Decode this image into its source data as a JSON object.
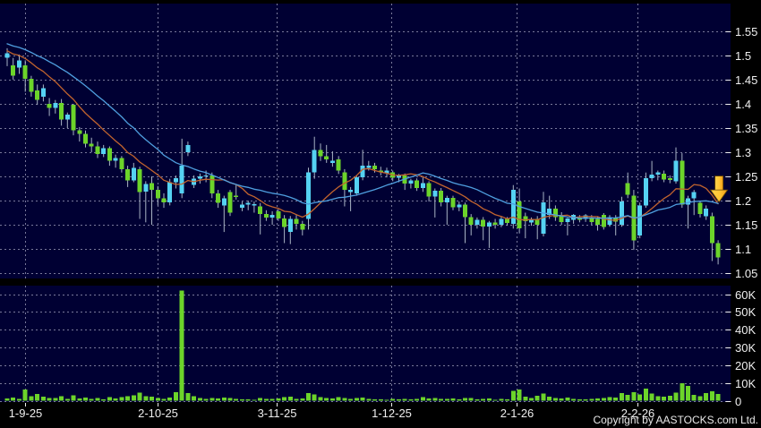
{
  "footer": {
    "copyright": "Copyright by AASTOCKS.com Ltd."
  },
  "chart_data": {
    "type": "candlestick+volume",
    "title": "",
    "legend_position": "none",
    "grid": true,
    "price_axis": {
      "side": "right",
      "min": 1.05,
      "max": 1.55,
      "step": 0.05,
      "ticks": [
        {
          "label": "1.55",
          "value": 1.55
        },
        {
          "label": "1.5",
          "value": 1.5
        },
        {
          "label": "1.45",
          "value": 1.45
        },
        {
          "label": "1.4",
          "value": 1.4
        },
        {
          "label": "1.35",
          "value": 1.35
        },
        {
          "label": "1.3",
          "value": 1.3
        },
        {
          "label": "1.25",
          "value": 1.25
        },
        {
          "label": "1.2",
          "value": 1.2
        },
        {
          "label": "1.15",
          "value": 1.15
        },
        {
          "label": "1.1",
          "value": 1.1
        },
        {
          "label": "1.05",
          "value": 1.05
        }
      ]
    },
    "volume_axis": {
      "side": "right",
      "min": 0,
      "max": 63000,
      "ticks": [
        {
          "label": "60K",
          "value": 60000
        },
        {
          "label": "50K",
          "value": 50000
        },
        {
          "label": "40K",
          "value": 40000
        },
        {
          "label": "30K",
          "value": 30000
        },
        {
          "label": "20K",
          "value": 20000
        },
        {
          "label": "10K",
          "value": 10000
        },
        {
          "label": "0",
          "value": 0
        }
      ]
    },
    "x_ticks": [
      {
        "label": "1-9-25",
        "index": 3
      },
      {
        "label": "2-10-25",
        "index": 25
      },
      {
        "label": "3-11-25",
        "index": 44.7
      },
      {
        "label": "1-12-25",
        "index": 63.7
      },
      {
        "label": "2-1-26",
        "index": 84.5
      },
      {
        "label": "2-2-26",
        "index": 104.6
      }
    ],
    "colors": {
      "background": "#000000",
      "panel": "#000033",
      "grid": "#8f8fae",
      "up": "#55d2f2",
      "down": "#6cd42a",
      "wick": "#a9b4c4",
      "volume": "#6cd42a",
      "ma_fast": "#c2642e",
      "ma_slow": "#4f9fdf",
      "axis_text": "#efefef",
      "marker_light": "#ffd24d",
      "marker_dark": "#f09a18",
      "marker_edge": "#6b4a00"
    },
    "moving_averages": [
      {
        "name": "MA10",
        "period": 10,
        "color_key": "ma_fast"
      },
      {
        "name": "MA20",
        "period": 20,
        "color_key": "ma_slow"
      }
    ],
    "ma_seed_closes": [
      1.552,
      1.55,
      1.548,
      1.545,
      1.542,
      1.54,
      1.538,
      1.535,
      1.532,
      1.53,
      1.527,
      1.524,
      1.52,
      1.517,
      1.514,
      1.51,
      1.507,
      1.504,
      1.5,
      1.497
    ],
    "marker": {
      "shape": "down-arrow",
      "index": 118,
      "price": 1.197
    },
    "candles_format": [
      "open",
      "high",
      "low",
      "close",
      "volume"
    ],
    "candles": [
      [
        1.495,
        1.515,
        1.478,
        1.505,
        1200
      ],
      [
        1.48,
        1.495,
        1.45,
        1.458,
        1800
      ],
      [
        1.475,
        1.502,
        1.462,
        1.49,
        1000
      ],
      [
        1.48,
        1.49,
        1.425,
        1.452,
        6200
      ],
      [
        1.452,
        1.458,
        1.415,
        1.425,
        2600
      ],
      [
        1.428,
        1.44,
        1.398,
        1.408,
        3800
      ],
      [
        1.415,
        1.44,
        1.405,
        1.432,
        2200
      ],
      [
        1.4,
        1.412,
        1.375,
        1.392,
        1600
      ],
      [
        1.392,
        1.408,
        1.38,
        1.402,
        1400
      ],
      [
        1.402,
        1.41,
        1.355,
        1.368,
        2400
      ],
      [
        1.368,
        1.382,
        1.35,
        1.378,
        1100
      ],
      [
        1.398,
        1.4,
        1.335,
        1.345,
        2900
      ],
      [
        1.345,
        1.352,
        1.322,
        1.338,
        1300
      ],
      [
        1.338,
        1.345,
        1.31,
        1.318,
        1700
      ],
      [
        1.318,
        1.33,
        1.3,
        1.312,
        900
      ],
      [
        1.312,
        1.322,
        1.288,
        1.296,
        1500
      ],
      [
        1.296,
        1.315,
        1.29,
        1.308,
        800
      ],
      [
        1.308,
        1.312,
        1.272,
        1.282,
        2100
      ],
      [
        1.282,
        1.295,
        1.268,
        1.288,
        1200
      ],
      [
        1.288,
        1.292,
        1.258,
        1.265,
        1900
      ],
      [
        1.265,
        1.272,
        1.228,
        1.242,
        2400
      ],
      [
        1.242,
        1.278,
        1.238,
        1.268,
        3100
      ],
      [
        1.265,
        1.27,
        1.162,
        1.218,
        4500
      ],
      [
        1.218,
        1.24,
        1.155,
        1.234,
        2500
      ],
      [
        1.236,
        1.25,
        1.15,
        1.222,
        2200
      ],
      [
        1.222,
        1.23,
        1.19,
        1.205,
        1500
      ],
      [
        1.205,
        1.215,
        1.185,
        1.196,
        1000
      ],
      [
        1.196,
        1.245,
        1.19,
        1.238,
        1800
      ],
      [
        1.238,
        1.252,
        1.225,
        1.246,
        4800
      ],
      [
        1.215,
        1.328,
        1.205,
        1.272,
        62000
      ],
      [
        1.3,
        1.322,
        1.292,
        1.315,
        4200
      ],
      [
        1.232,
        1.252,
        1.226,
        1.245,
        2600
      ],
      [
        1.245,
        1.256,
        1.235,
        1.25,
        1400
      ],
      [
        1.25,
        1.262,
        1.238,
        1.252,
        1100
      ],
      [
        1.252,
        1.258,
        1.205,
        1.215,
        1600
      ],
      [
        1.215,
        1.222,
        1.185,
        1.195,
        1300
      ],
      [
        1.19,
        1.21,
        1.135,
        1.205,
        1700
      ],
      [
        1.218,
        1.222,
        1.168,
        1.175,
        1500
      ],
      [
        1.21,
        1.232,
        1.202,
        1.208,
        900
      ],
      [
        1.185,
        1.198,
        1.178,
        1.192,
        700
      ],
      [
        1.192,
        1.2,
        1.18,
        1.195,
        800
      ],
      [
        1.19,
        1.198,
        1.175,
        1.193,
        600
      ],
      [
        1.188,
        1.195,
        1.13,
        1.172,
        1400
      ],
      [
        1.172,
        1.18,
        1.158,
        1.165,
        1000
      ],
      [
        1.165,
        1.178,
        1.15,
        1.17,
        900
      ],
      [
        1.178,
        1.182,
        1.158,
        1.163,
        1200
      ],
      [
        1.163,
        1.17,
        1.112,
        1.145,
        1900
      ],
      [
        1.135,
        1.168,
        1.11,
        1.162,
        2300
      ],
      [
        1.162,
        1.17,
        1.14,
        1.152,
        1100
      ],
      [
        1.152,
        1.158,
        1.128,
        1.14,
        1300
      ],
      [
        1.162,
        1.268,
        1.14,
        1.258,
        4300
      ],
      [
        1.258,
        1.332,
        1.245,
        1.305,
        3600
      ],
      [
        1.305,
        1.318,
        1.282,
        1.292,
        2100
      ],
      [
        1.292,
        1.315,
        1.278,
        1.285,
        1600
      ],
      [
        1.278,
        1.302,
        1.27,
        1.282,
        1200
      ],
      [
        1.285,
        1.292,
        1.255,
        1.262,
        1900
      ],
      [
        1.258,
        1.265,
        1.188,
        1.222,
        1500
      ],
      [
        1.218,
        1.228,
        1.178,
        1.222,
        1100
      ],
      [
        1.215,
        1.252,
        1.21,
        1.248,
        1400
      ],
      [
        1.248,
        1.305,
        1.242,
        1.272,
        1800
      ],
      [
        1.268,
        1.282,
        1.262,
        1.272,
        900
      ],
      [
        1.272,
        1.278,
        1.258,
        1.265,
        700
      ],
      [
        1.262,
        1.27,
        1.252,
        1.258,
        800
      ],
      [
        1.256,
        1.268,
        1.248,
        1.262,
        600
      ],
      [
        1.258,
        1.262,
        1.24,
        1.247,
        900
      ],
      [
        1.247,
        1.255,
        1.238,
        1.252,
        700
      ],
      [
        1.252,
        1.256,
        1.222,
        1.235,
        1100
      ],
      [
        1.235,
        1.245,
        1.225,
        1.242,
        800
      ],
      [
        1.242,
        1.246,
        1.22,
        1.226,
        1000
      ],
      [
        1.226,
        1.248,
        1.218,
        1.236,
        1900
      ],
      [
        1.236,
        1.24,
        1.198,
        1.208,
        1300
      ],
      [
        1.208,
        1.225,
        1.165,
        1.22,
        1500
      ],
      [
        1.22,
        1.226,
        1.188,
        1.196,
        1100
      ],
      [
        1.196,
        1.21,
        1.15,
        1.206,
        900
      ],
      [
        1.206,
        1.21,
        1.18,
        1.186,
        1200
      ],
      [
        1.186,
        1.198,
        1.178,
        1.192,
        700
      ],
      [
        1.192,
        1.196,
        1.112,
        1.166,
        1600
      ],
      [
        1.166,
        1.172,
        1.128,
        1.15,
        1400
      ],
      [
        1.15,
        1.165,
        1.142,
        1.16,
        800
      ],
      [
        1.16,
        1.166,
        1.118,
        1.146,
        1000
      ],
      [
        1.146,
        1.158,
        1.102,
        1.155,
        1300
      ],
      [
        1.155,
        1.162,
        1.142,
        1.15,
        600
      ],
      [
        1.15,
        1.168,
        1.145,
        1.162,
        900
      ],
      [
        1.162,
        1.166,
        1.148,
        1.154,
        700
      ],
      [
        1.152,
        1.232,
        1.142,
        1.222,
        5600
      ],
      [
        1.198,
        1.225,
        1.132,
        1.143,
        6400
      ],
      [
        1.168,
        1.175,
        1.122,
        1.157,
        2200
      ],
      [
        1.155,
        1.165,
        1.148,
        1.162,
        1400
      ],
      [
        1.162,
        1.168,
        1.12,
        1.15,
        2800
      ],
      [
        1.132,
        1.218,
        1.126,
        1.196,
        4100
      ],
      [
        1.17,
        1.21,
        1.162,
        1.183,
        2300
      ],
      [
        1.183,
        1.19,
        1.158,
        1.166,
        1500
      ],
      [
        1.17,
        1.176,
        1.15,
        1.156,
        1200
      ],
      [
        1.156,
        1.164,
        1.128,
        1.163,
        1700
      ],
      [
        1.16,
        1.172,
        1.152,
        1.17,
        900
      ],
      [
        1.165,
        1.17,
        1.155,
        1.16,
        700
      ],
      [
        1.162,
        1.172,
        1.156,
        1.169,
        800
      ],
      [
        1.165,
        1.17,
        1.15,
        1.156,
        1100
      ],
      [
        1.162,
        1.166,
        1.138,
        1.15,
        1300
      ],
      [
        1.17,
        1.174,
        1.14,
        1.145,
        1600
      ],
      [
        1.15,
        1.17,
        1.146,
        1.166,
        2100
      ],
      [
        1.164,
        1.17,
        1.128,
        1.156,
        1800
      ],
      [
        1.15,
        1.208,
        1.146,
        1.198,
        4400
      ],
      [
        1.236,
        1.258,
        1.205,
        1.212,
        3200
      ],
      [
        1.21,
        1.222,
        1.098,
        1.118,
        4800
      ],
      [
        1.128,
        1.196,
        1.122,
        1.19,
        3600
      ],
      [
        1.19,
        1.258,
        1.185,
        1.246,
        6800
      ],
      [
        1.246,
        1.282,
        1.24,
        1.254,
        4100
      ],
      [
        1.254,
        1.262,
        1.242,
        1.258,
        2600
      ],
      [
        1.256,
        1.262,
        1.238,
        1.244,
        2200
      ],
      [
        1.246,
        1.252,
        1.236,
        1.243,
        2800
      ],
      [
        1.24,
        1.31,
        1.235,
        1.282,
        4600
      ],
      [
        1.282,
        1.298,
        1.185,
        1.192,
        9800
      ],
      [
        1.192,
        1.21,
        1.142,
        1.205,
        8200
      ],
      [
        1.205,
        1.222,
        1.17,
        1.218,
        3400
      ],
      [
        1.195,
        1.2,
        1.165,
        1.172,
        2600
      ],
      [
        1.168,
        1.19,
        1.16,
        1.183,
        4400
      ],
      [
        1.168,
        1.175,
        1.075,
        1.112,
        5200
      ],
      [
        1.112,
        1.118,
        1.068,
        1.082,
        3800
      ]
    ]
  }
}
